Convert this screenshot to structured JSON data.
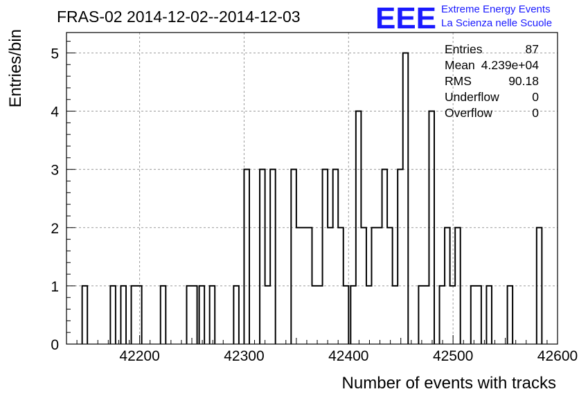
{
  "header": {
    "title": "FRAS-02 2014-12-02--2014-12-03",
    "logo_text": "EEE",
    "logo_line1": "Extreme Energy Events",
    "logo_line2": "La Scienza nelle Scuole"
  },
  "stats_box": {
    "rows": [
      {
        "label": "Entries",
        "value": "87"
      },
      {
        "label": "Mean",
        "value": "4.239e+04"
      },
      {
        "label": "RMS",
        "value": "90.18"
      },
      {
        "label": "Underflow",
        "value": "0"
      },
      {
        "label": "Overflow",
        "value": "0"
      }
    ]
  },
  "chart_data": {
    "type": "bar",
    "histogram": true,
    "xlabel": "Number of events with tracks",
    "ylabel": "Entries/bin",
    "xlim": [
      42130,
      42600
    ],
    "ylim": [
      0,
      5.35
    ],
    "bin_width": 5.0,
    "xticks": [
      42200,
      42300,
      42400,
      42500,
      42600
    ],
    "yticks": [
      0,
      1,
      2,
      3,
      4,
      5
    ],
    "grid": true,
    "bins": [
      [
        42145,
        1
      ],
      [
        42172,
        1
      ],
      [
        42182,
        1
      ],
      [
        42192,
        1
      ],
      [
        42197,
        1
      ],
      [
        42220,
        1
      ],
      [
        42245,
        1
      ],
      [
        42250,
        1
      ],
      [
        42257,
        1
      ],
      [
        42267,
        1
      ],
      [
        42290,
        1
      ],
      [
        42300,
        3
      ],
      [
        42315,
        3
      ],
      [
        42320,
        1
      ],
      [
        42325,
        3
      ],
      [
        42345,
        3
      ],
      [
        42350,
        2
      ],
      [
        42355,
        2
      ],
      [
        42360,
        2
      ],
      [
        42365,
        1
      ],
      [
        42370,
        1
      ],
      [
        42375,
        3
      ],
      [
        42380,
        2
      ],
      [
        42385,
        3
      ],
      [
        42390,
        2
      ],
      [
        42395,
        1
      ],
      [
        42402,
        1
      ],
      [
        42407,
        4
      ],
      [
        42412,
        2
      ],
      [
        42417,
        1
      ],
      [
        42422,
        2
      ],
      [
        42427,
        2
      ],
      [
        42432,
        3
      ],
      [
        42437,
        2
      ],
      [
        42442,
        1
      ],
      [
        42447,
        3
      ],
      [
        42452,
        5
      ],
      [
        42467,
        1
      ],
      [
        42472,
        1
      ],
      [
        42477,
        4
      ],
      [
        42487,
        1
      ],
      [
        42492,
        2
      ],
      [
        42497,
        1
      ],
      [
        42502,
        2
      ],
      [
        42517,
        1
      ],
      [
        42522,
        1
      ],
      [
        42532,
        1
      ],
      [
        42552,
        1
      ],
      [
        42580,
        2
      ]
    ]
  }
}
